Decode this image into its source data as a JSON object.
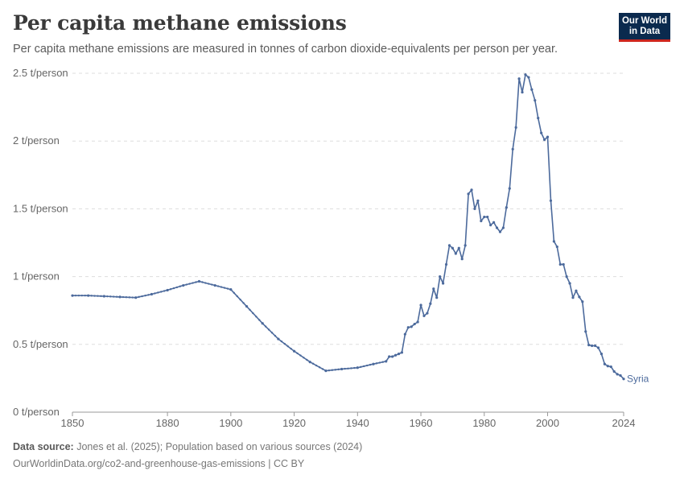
{
  "header": {
    "title": "Per capita methane emissions",
    "subtitle": "Per capita methane emissions are measured in tonnes of carbon dioxide-equivalents per person per year."
  },
  "logo": {
    "line1": "Our World",
    "line2": "in Data"
  },
  "footer": {
    "source_label": "Data source:",
    "source_text": "Jones et al. (2025); Population based on various sources (2024)",
    "url_text": "OurWorldinData.org/co2-and-greenhouse-gas-emissions | CC BY"
  },
  "colors": {
    "series": "#4c6a9c",
    "grid": "#dddddd",
    "axis": "#999999",
    "tick_text": "#666666"
  },
  "chart_data": {
    "type": "line",
    "title": "Per capita methane emissions",
    "xlim": [
      1850,
      2024
    ],
    "ylim": [
      0,
      2.5
    ],
    "x_ticks": [
      1850,
      1880,
      1900,
      1920,
      1940,
      1960,
      1980,
      2000,
      2024
    ],
    "y_ticks": [
      0,
      0.5,
      1,
      1.5,
      2,
      2.5
    ],
    "y_tick_labels": [
      "0 t/person",
      "0.5 t/person",
      "1 t/person",
      "1.5 t/person",
      "2 t/person",
      "2.5 t/person"
    ],
    "grid": true,
    "series": [
      {
        "name": "Syria",
        "points": [
          [
            1850,
            0.86
          ],
          [
            1855,
            0.86
          ],
          [
            1860,
            0.855
          ],
          [
            1865,
            0.85
          ],
          [
            1870,
            0.845
          ],
          [
            1875,
            0.87
          ],
          [
            1880,
            0.9
          ],
          [
            1885,
            0.935
          ],
          [
            1890,
            0.965
          ],
          [
            1895,
            0.935
          ],
          [
            1900,
            0.905
          ],
          [
            1905,
            0.78
          ],
          [
            1910,
            0.655
          ],
          [
            1915,
            0.54
          ],
          [
            1920,
            0.45
          ],
          [
            1925,
            0.37
          ],
          [
            1930,
            0.305
          ],
          [
            1935,
            0.318
          ],
          [
            1940,
            0.328
          ],
          [
            1945,
            0.355
          ],
          [
            1949,
            0.375
          ],
          [
            1950,
            0.41
          ],
          [
            1951,
            0.41
          ],
          [
            1952,
            0.42
          ],
          [
            1953,
            0.43
          ],
          [
            1954,
            0.44
          ],
          [
            1955,
            0.575
          ],
          [
            1956,
            0.625
          ],
          [
            1957,
            0.63
          ],
          [
            1958,
            0.65
          ],
          [
            1959,
            0.665
          ],
          [
            1960,
            0.79
          ],
          [
            1961,
            0.71
          ],
          [
            1962,
            0.73
          ],
          [
            1963,
            0.8
          ],
          [
            1964,
            0.91
          ],
          [
            1965,
            0.845
          ],
          [
            1966,
            1.0
          ],
          [
            1967,
            0.95
          ],
          [
            1968,
            1.09
          ],
          [
            1969,
            1.23
          ],
          [
            1970,
            1.21
          ],
          [
            1971,
            1.17
          ],
          [
            1972,
            1.21
          ],
          [
            1973,
            1.13
          ],
          [
            1974,
            1.23
          ],
          [
            1975,
            1.61
          ],
          [
            1976,
            1.64
          ],
          [
            1977,
            1.5
          ],
          [
            1978,
            1.56
          ],
          [
            1979,
            1.41
          ],
          [
            1980,
            1.44
          ],
          [
            1981,
            1.44
          ],
          [
            1982,
            1.38
          ],
          [
            1983,
            1.4
          ],
          [
            1984,
            1.36
          ],
          [
            1985,
            1.33
          ],
          [
            1986,
            1.36
          ],
          [
            1987,
            1.51
          ],
          [
            1988,
            1.65
          ],
          [
            1989,
            1.94
          ],
          [
            1990,
            2.1
          ],
          [
            1991,
            2.46
          ],
          [
            1992,
            2.36
          ],
          [
            1993,
            2.49
          ],
          [
            1994,
            2.47
          ],
          [
            1995,
            2.38
          ],
          [
            1996,
            2.3
          ],
          [
            1997,
            2.17
          ],
          [
            1998,
            2.06
          ],
          [
            1999,
            2.01
          ],
          [
            2000,
            2.03
          ],
          [
            2001,
            1.56
          ],
          [
            2002,
            1.26
          ],
          [
            2003,
            1.22
          ],
          [
            2004,
            1.09
          ],
          [
            2005,
            1.09
          ],
          [
            2006,
            1.0
          ],
          [
            2007,
            0.95
          ],
          [
            2008,
            0.845
          ],
          [
            2009,
            0.895
          ],
          [
            2010,
            0.85
          ],
          [
            2011,
            0.815
          ],
          [
            2012,
            0.595
          ],
          [
            2013,
            0.495
          ],
          [
            2014,
            0.49
          ],
          [
            2015,
            0.49
          ],
          [
            2016,
            0.475
          ],
          [
            2017,
            0.43
          ],
          [
            2018,
            0.355
          ],
          [
            2019,
            0.34
          ],
          [
            2020,
            0.335
          ],
          [
            2021,
            0.3
          ],
          [
            2022,
            0.28
          ],
          [
            2023,
            0.27
          ],
          [
            2024,
            0.245
          ]
        ]
      }
    ]
  }
}
